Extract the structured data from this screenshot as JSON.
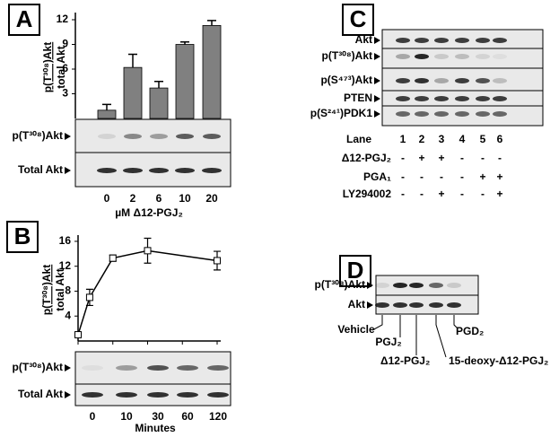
{
  "chart_data": [
    {
      "type": "bar",
      "label": "A",
      "y_label": [
        "p(T³⁰⁸)Akt",
        "total Akt"
      ],
      "categories": [
        "0",
        "2",
        "6",
        "10",
        "20"
      ],
      "x_label": "µM  Δ12-PGJ₂",
      "values": [
        1.0,
        6.2,
        3.7,
        9.0,
        11.3
      ],
      "errors": [
        0.7,
        1.6,
        0.8,
        0.3,
        0.6
      ],
      "color": "#808080",
      "ylim": [
        0,
        12
      ],
      "yticks": [
        3,
        6,
        9,
        12
      ],
      "blot_rows": [
        "p(T³⁰⁸)Akt",
        "Total Akt"
      ]
    },
    {
      "type": "line",
      "label": "B",
      "y_label": [
        "p(T³⁰⁸)Akt",
        "total Akt"
      ],
      "x": [
        0,
        10,
        30,
        60,
        120
      ],
      "values": [
        1.0,
        7.0,
        13.3,
        14.5,
        12.9
      ],
      "errors": [
        0,
        1.3,
        0.5,
        2.0,
        1.5
      ],
      "color": "#000000",
      "xlim": [
        0,
        120
      ],
      "xticks": [
        0,
        30,
        60,
        90,
        120
      ],
      "ylim": [
        0,
        17
      ],
      "yticks": [
        4,
        8,
        12,
        16
      ],
      "blot_lanes": [
        "0",
        "10",
        "30",
        "60",
        "120"
      ],
      "x_label": "Minutes",
      "blot_rows": [
        "p(T³⁰⁸)Akt",
        "Total Akt"
      ]
    }
  ],
  "panel_c": {
    "label": "C",
    "rows": [
      "Akt",
      "p(T³⁰⁸)Akt",
      "p(S⁴⁷³)Akt",
      "PTEN",
      "p(S²⁴¹)PDK1"
    ],
    "lane_title": "Lane",
    "lanes": [
      "1",
      "2",
      "3",
      "4",
      "5",
      "6"
    ],
    "treatments": [
      {
        "name": "Δ12-PGJ₂",
        "signs": [
          "-",
          "+",
          "+",
          "-",
          "-",
          "-"
        ]
      },
      {
        "name": "PGA₁",
        "signs": [
          "-",
          "-",
          "-",
          "-",
          "+",
          "+"
        ]
      },
      {
        "name": "LY294002",
        "signs": [
          "-",
          "-",
          "+",
          "-",
          "-",
          "+"
        ]
      }
    ]
  },
  "panel_d": {
    "label": "D",
    "rows": [
      "p(T³⁰⁸)Akt",
      "Akt"
    ],
    "lanes": [
      "Vehicle",
      "PGJ₂",
      "Δ12-PGJ₂",
      "15-deoxy-Δ12-PGJ₂",
      "PGD₂"
    ]
  }
}
